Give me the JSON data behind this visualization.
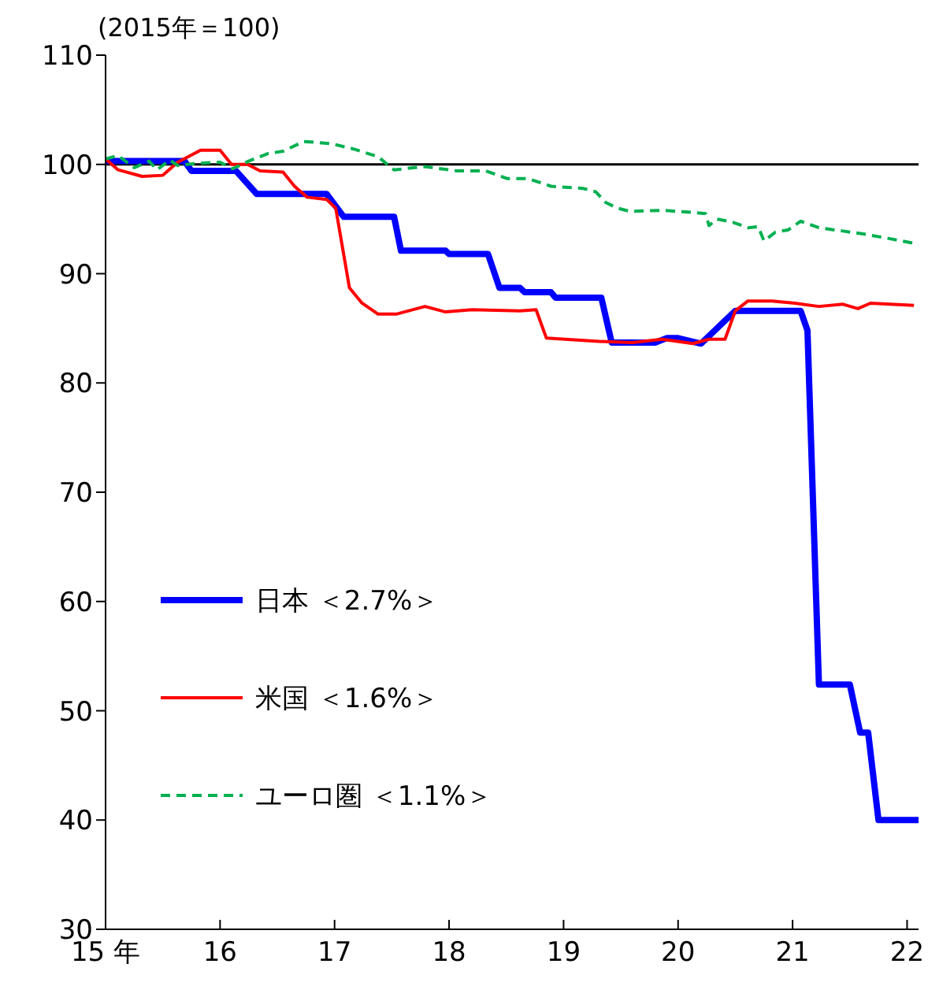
{
  "chart_data": {
    "type": "line",
    "annotations": [
      "(2015年＝100)"
    ],
    "xlim": [
      15,
      22.1
    ],
    "xticks": [
      {
        "value": 15,
        "label": "15 年"
      },
      16,
      17,
      18,
      19,
      20,
      21,
      22
    ],
    "ylim": [
      30,
      110
    ],
    "yticks": [
      30,
      40,
      50,
      60,
      70,
      80,
      90,
      100,
      110
    ],
    "ref_lines": [
      {
        "axis": "y",
        "value": 100,
        "color": "#000000"
      }
    ],
    "legend": "left",
    "grid": false,
    "marker": "none",
    "series": [
      {
        "name": "日本 ＜2.7%＞",
        "color": "#0000ff",
        "line_style": "solid",
        "x": [
          15,
          15.69,
          15.75,
          16.14,
          16.32,
          16.93,
          17.08,
          17.52,
          17.58,
          17.97,
          18.0,
          18.34,
          18.44,
          18.62,
          18.66,
          18.89,
          18.93,
          19.33,
          19.42,
          19.8,
          19.9,
          20.0,
          20.2,
          20.34,
          20.5,
          21.07,
          21.13,
          21.23,
          21.5,
          21.59,
          21.66,
          21.75,
          22.1
        ],
        "values": [
          100.3,
          100.3,
          99.4,
          99.4,
          97.3,
          97.3,
          95.2,
          95.2,
          92.1,
          92.1,
          91.8,
          91.8,
          88.7,
          88.7,
          88.3,
          88.3,
          87.8,
          87.8,
          83.7,
          83.7,
          84.1,
          84.1,
          83.6,
          85.0,
          86.6,
          86.6,
          84.8,
          52.4,
          52.4,
          48.0,
          48.0,
          40.0,
          40.0
        ]
      },
      {
        "name": "米国 ＜1.6%＞",
        "color": "#ff0000",
        "line_style": "solid",
        "x": [
          15,
          15.11,
          15.32,
          15.5,
          15.63,
          15.83,
          16.0,
          16.1,
          16.24,
          16.35,
          16.55,
          16.65,
          16.76,
          16.93,
          17.01,
          17.13,
          17.24,
          17.38,
          17.54,
          17.79,
          17.97,
          18.2,
          18.62,
          18.76,
          18.85,
          19.31,
          19.6,
          19.86,
          20.13,
          20.27,
          20.41,
          20.5,
          20.61,
          20.82,
          21.02,
          21.23,
          21.44,
          21.57,
          21.68,
          22.06
        ],
        "values": [
          100.5,
          99.5,
          98.9,
          99.0,
          100.2,
          101.3,
          101.3,
          100.0,
          100.0,
          99.4,
          99.3,
          98.0,
          97.0,
          96.8,
          96.0,
          88.7,
          87.3,
          86.3,
          86.3,
          87.0,
          86.5,
          86.7,
          86.6,
          86.7,
          84.1,
          83.8,
          83.7,
          84.0,
          83.6,
          84.0,
          84.0,
          86.6,
          87.5,
          87.5,
          87.3,
          87.0,
          87.2,
          86.8,
          87.3,
          87.1
        ]
      },
      {
        "name": "ユーロ圏 ＜1.1%＞",
        "color": "#00b050",
        "line_style": "dashed",
        "x": [
          15,
          15.11,
          15.25,
          15.38,
          15.45,
          15.56,
          15.63,
          15.8,
          16.0,
          16.11,
          16.25,
          16.42,
          16.55,
          16.73,
          16.97,
          17.17,
          17.38,
          17.52,
          17.79,
          18.07,
          18.32,
          18.51,
          18.69,
          18.89,
          19.17,
          19.28,
          19.37,
          19.47,
          19.58,
          19.86,
          20.13,
          20.24,
          20.27,
          20.34,
          20.48,
          20.61,
          20.7,
          20.75,
          20.85,
          20.96,
          21.07,
          21.23,
          21.44,
          21.64,
          21.85,
          22.1
        ],
        "values": [
          100.5,
          100.8,
          99.7,
          100.3,
          99.5,
          100.4,
          99.9,
          100.1,
          100.2,
          99.6,
          100.3,
          101.0,
          101.2,
          102.1,
          101.9,
          101.4,
          100.7,
          99.5,
          99.8,
          99.4,
          99.4,
          98.7,
          98.7,
          98.0,
          97.8,
          97.5,
          96.5,
          96.0,
          95.7,
          95.8,
          95.6,
          95.5,
          94.4,
          95.0,
          94.7,
          94.2,
          94.3,
          93.0,
          93.8,
          94.0,
          94.8,
          94.2,
          93.9,
          93.6,
          93.2,
          92.7
        ]
      }
    ]
  }
}
